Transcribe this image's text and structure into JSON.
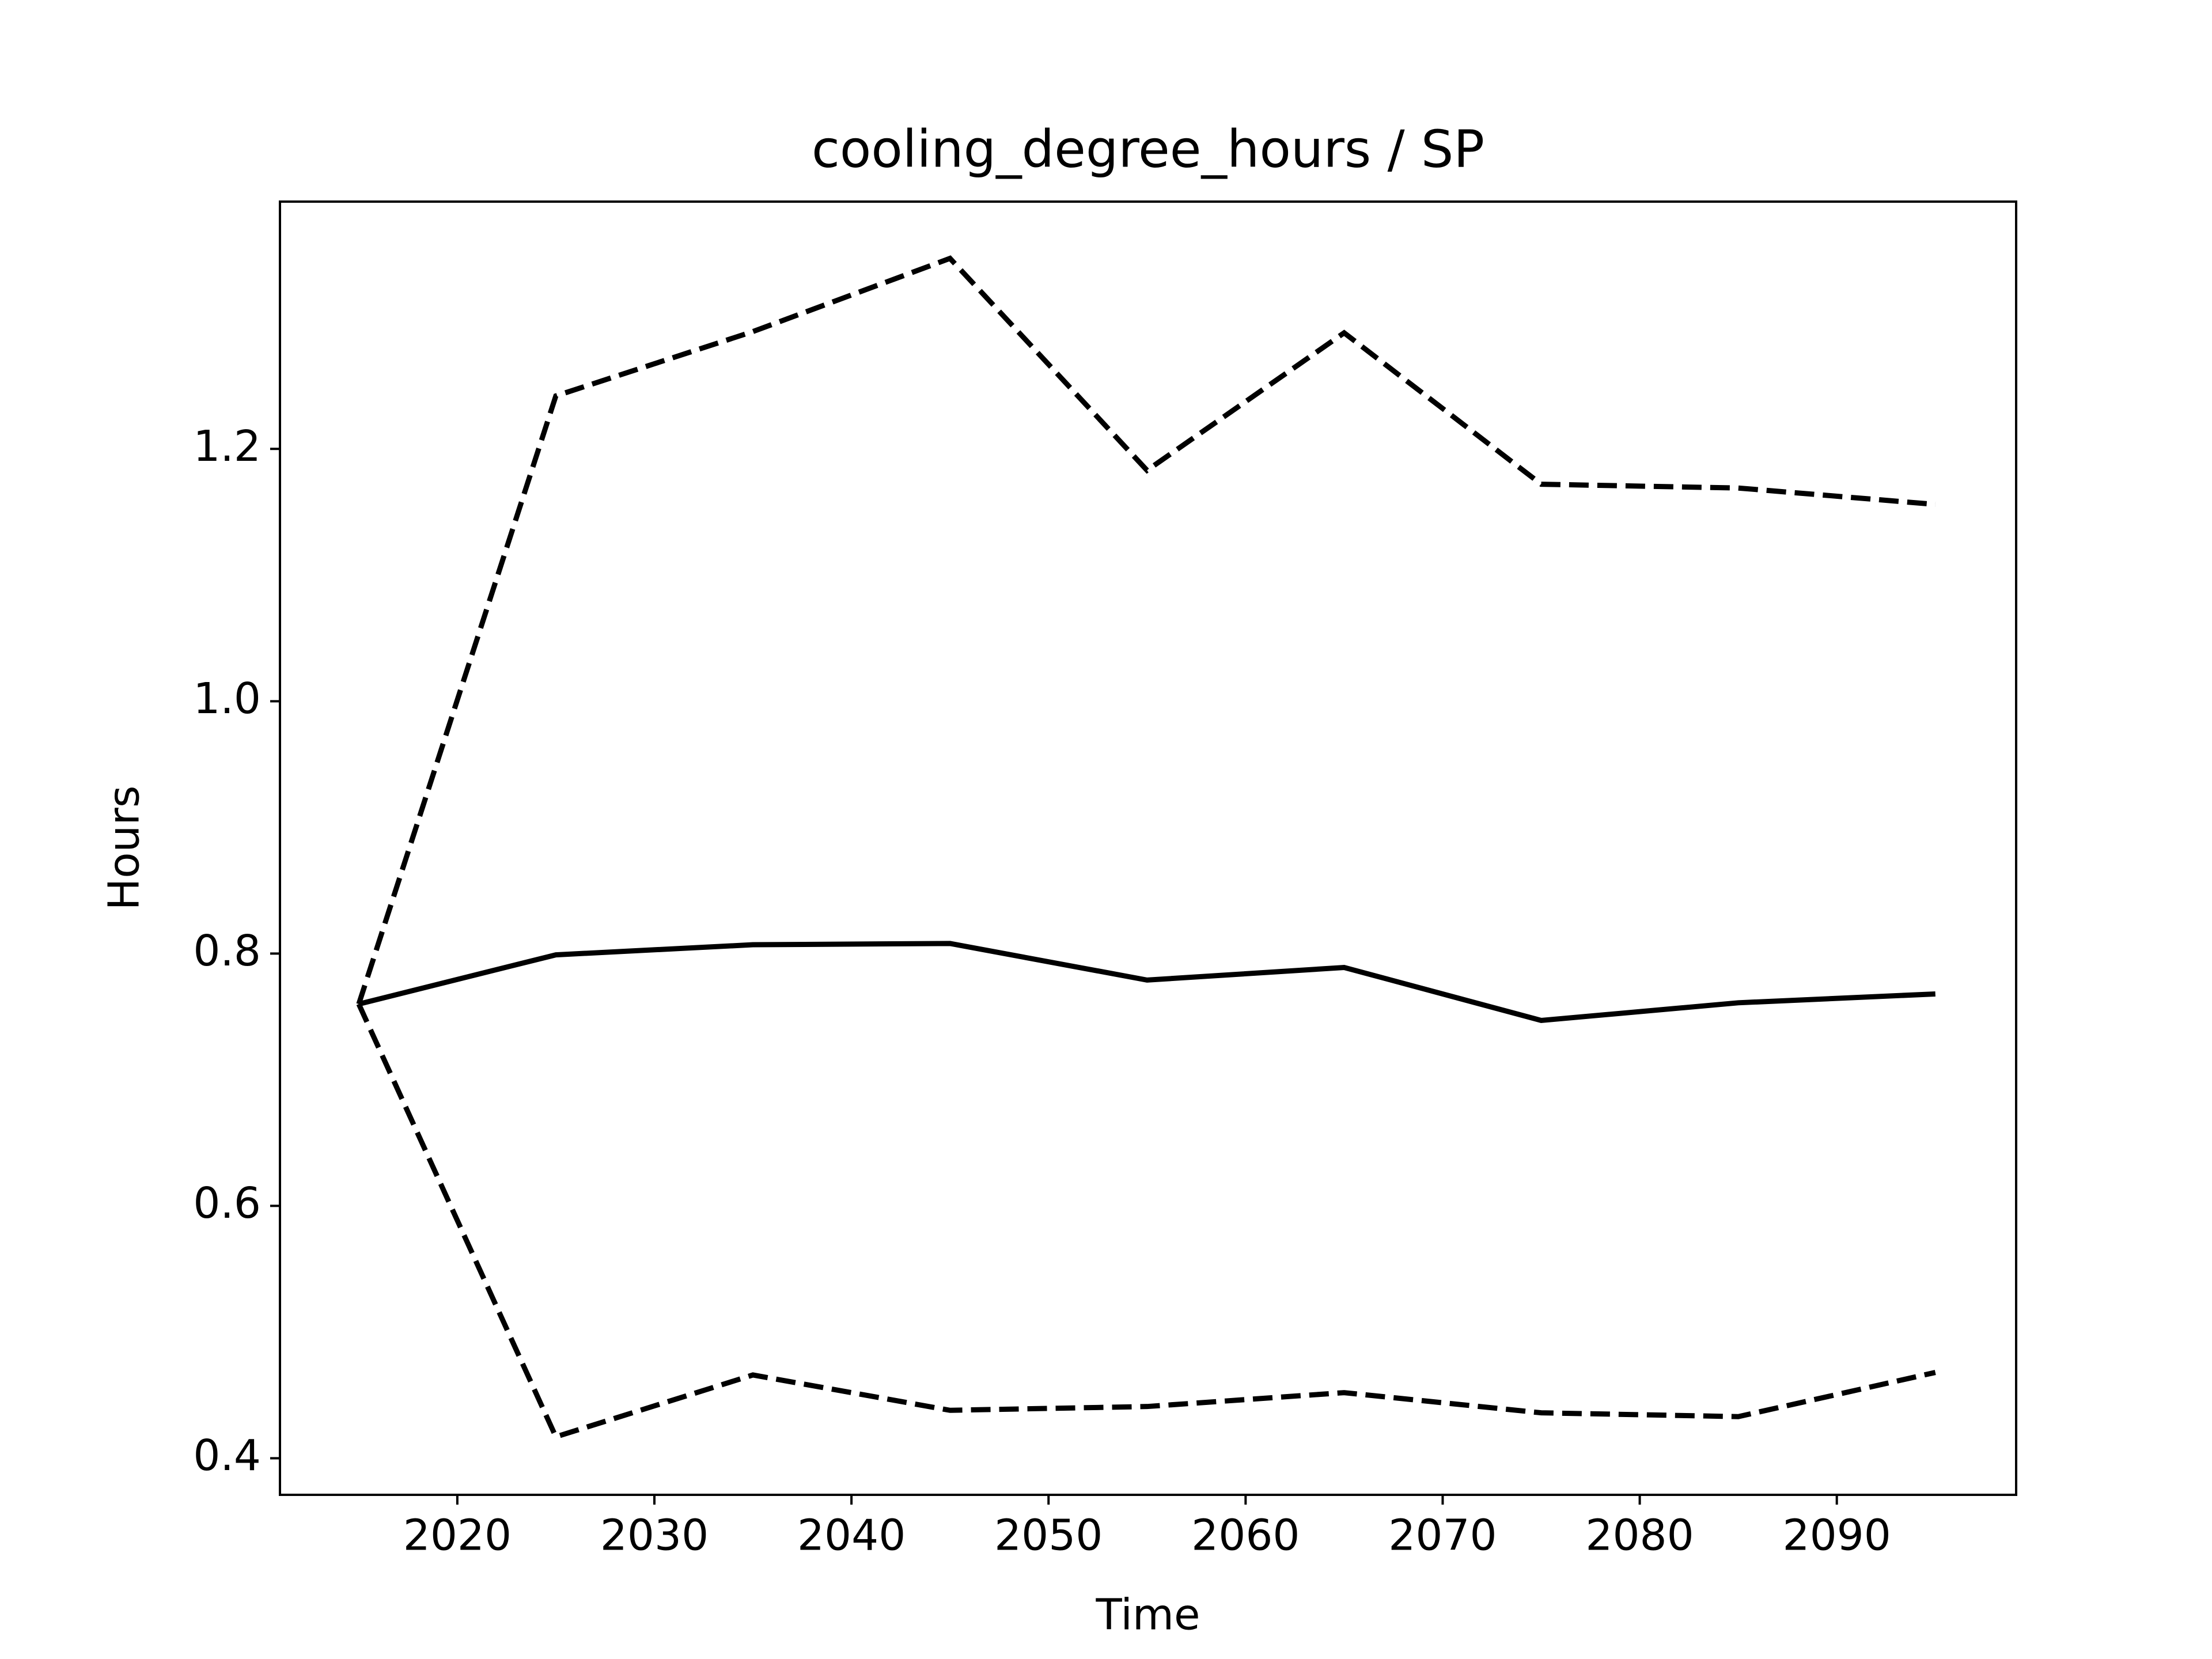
{
  "chart_data": {
    "type": "line",
    "title": "cooling_degree_hours / SP",
    "xlabel": "Time",
    "ylabel": "Hours",
    "x": [
      2015,
      2025,
      2035,
      2045,
      2055,
      2065,
      2075,
      2085,
      2095
    ],
    "series": [
      {
        "color": "#000000",
        "dashed": false,
        "values": [
          0.76,
          0.799,
          0.807,
          0.808,
          0.779,
          0.789,
          0.747,
          0.761,
          0.768
        ]
      },
      {
        "color": "#000000",
        "dashed": true,
        "values": [
          0.76,
          1.242,
          1.293,
          1.351,
          1.183,
          1.292,
          1.172,
          1.169,
          1.156
        ]
      },
      {
        "color": "#000000",
        "dashed": true,
        "values": [
          0.76,
          0.417,
          0.466,
          0.438,
          0.441,
          0.452,
          0.436,
          0.433,
          0.468
        ]
      }
    ],
    "xlim": [
      2011.0,
      2099.1
    ],
    "ylim": [
      0.371,
      1.396
    ],
    "xticks": [
      2020,
      2030,
      2040,
      2050,
      2060,
      2070,
      2080,
      2090
    ],
    "yticks": [
      {
        "value": 0.4,
        "label": "0.4"
      },
      {
        "value": 0.6,
        "label": "0.6"
      },
      {
        "value": 0.8,
        "label": "0.8"
      },
      {
        "value": 1.0,
        "label": "1.0"
      },
      {
        "value": 1.2,
        "label": "1.2"
      }
    ],
    "grid": false
  }
}
